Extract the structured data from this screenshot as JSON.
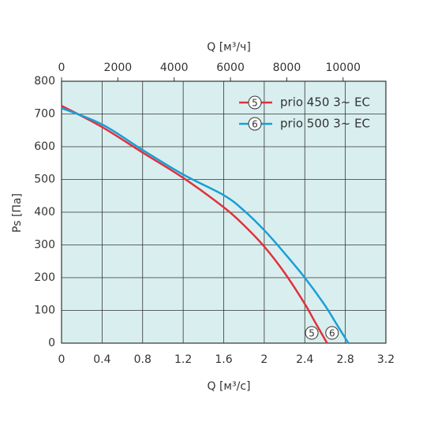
{
  "chart_data": {
    "type": "line",
    "xlabel": "Q [м³/с]",
    "x2label": "Q [м³/ч]",
    "ylabel": "Ps [Па]",
    "xlim": [
      0,
      3.2
    ],
    "xticks": [
      0,
      0.4,
      0.8,
      1.2,
      1.6,
      2.0,
      2.4,
      2.8,
      3.2
    ],
    "x2lim": [
      0,
      11520
    ],
    "x2ticks": [
      0,
      2000,
      4000,
      6000,
      8000,
      10000
    ],
    "ylim": [
      0,
      800
    ],
    "yticks": [
      0,
      100,
      200,
      300,
      400,
      500,
      600,
      700,
      800
    ],
    "grid": true,
    "legend": "upper right",
    "series": [
      {
        "name": "prio 450 3~ EC",
        "label": "5",
        "color": "#e0323c",
        "x": [
          0,
          0.4,
          0.8,
          1.2,
          1.6,
          1.8,
          2.0,
          2.2,
          2.4,
          2.5,
          2.62
        ],
        "values": [
          725,
          660,
          582,
          505,
          415,
          360,
          295,
          215,
          120,
          65,
          0
        ]
      },
      {
        "name": "prio 500 3~ EC",
        "label": "6",
        "color": "#1a9ed8",
        "x": [
          0,
          0.4,
          0.8,
          1.2,
          1.6,
          1.8,
          2.0,
          2.2,
          2.4,
          2.6,
          2.7,
          2.83
        ],
        "values": [
          718,
          668,
          590,
          515,
          452,
          405,
          345,
          275,
          200,
          115,
          65,
          0
        ]
      }
    ]
  }
}
